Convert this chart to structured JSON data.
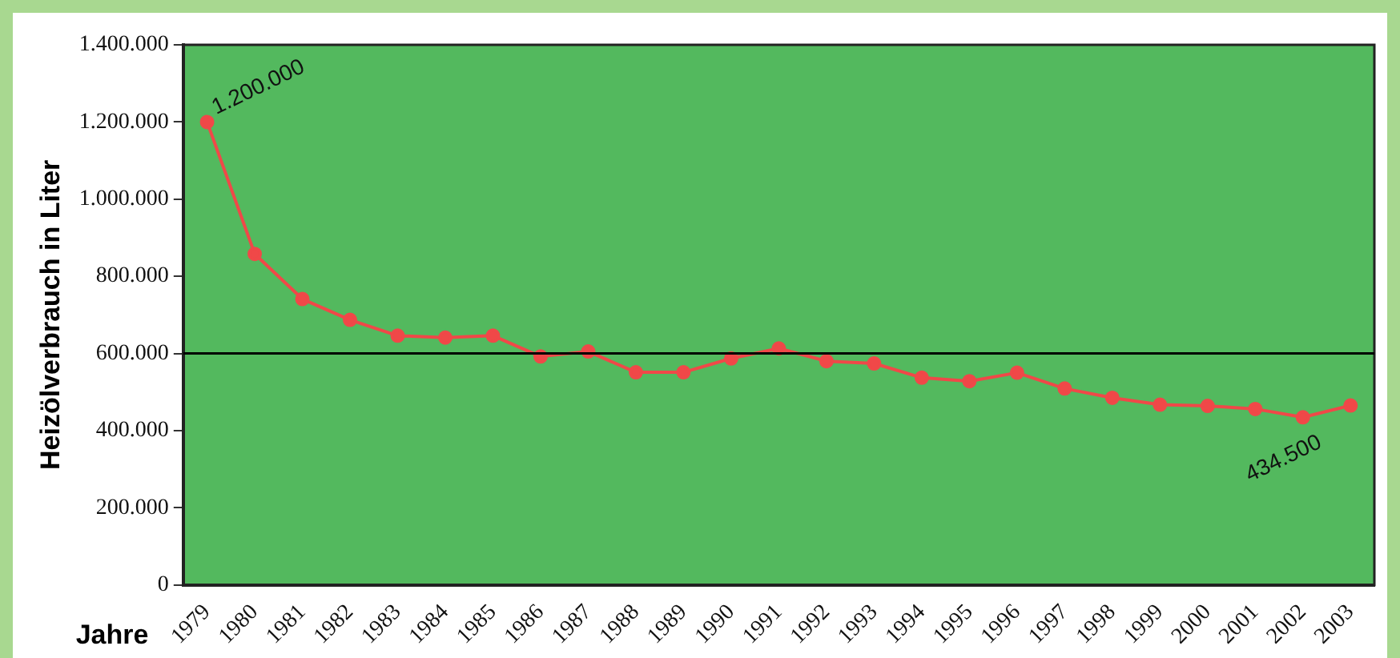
{
  "chart_data": {
    "type": "line",
    "xlabel": "Jahre",
    "ylabel": "Heizölverbrauch in Liter",
    "categories": [
      "1979",
      "1980",
      "1981",
      "1982",
      "1983",
      "1984",
      "1985",
      "1986",
      "1987",
      "1988",
      "1989",
      "1990",
      "1991",
      "1992",
      "1993",
      "1994",
      "1995",
      "1996",
      "1997",
      "1998",
      "1999",
      "2000",
      "2001",
      "2002",
      "2003"
    ],
    "series": [
      {
        "color": "#f04848",
        "values": [
          1200000,
          858000,
          741000,
          687000,
          646000,
          641000,
          646000,
          592000,
          605000,
          551000,
          551000,
          587000,
          613000,
          580000,
          574000,
          537000,
          528000,
          550000,
          509000,
          485000,
          467000,
          464000,
          456000,
          434500,
          465000
        ],
        "value_labels": [
          "1.200.000",
          null,
          null,
          null,
          null,
          null,
          null,
          null,
          null,
          null,
          null,
          null,
          null,
          null,
          null,
          null,
          null,
          null,
          null,
          null,
          null,
          null,
          null,
          "434.500",
          null
        ]
      }
    ],
    "ylim": [
      0,
      1400000
    ],
    "yticks": [
      0,
      {
        "value": 200000,
        "label": "200.000"
      },
      {
        "value": 400000,
        "label": "400.000"
      },
      {
        "value": 600000,
        "label": "600.000"
      },
      {
        "value": 800000,
        "label": "800.000"
      },
      {
        "value": 1000000,
        "label": "1.000.000"
      },
      {
        "value": 1200000,
        "label": "1.200.000"
      },
      {
        "value": 1400000,
        "label": "1.400.000"
      }
    ],
    "ref_lines": [
      {
        "axis": "y",
        "value": 600000,
        "color": "#000000"
      }
    ],
    "grid": false,
    "legend": false,
    "marker": "circle",
    "line_style": "solid"
  }
}
